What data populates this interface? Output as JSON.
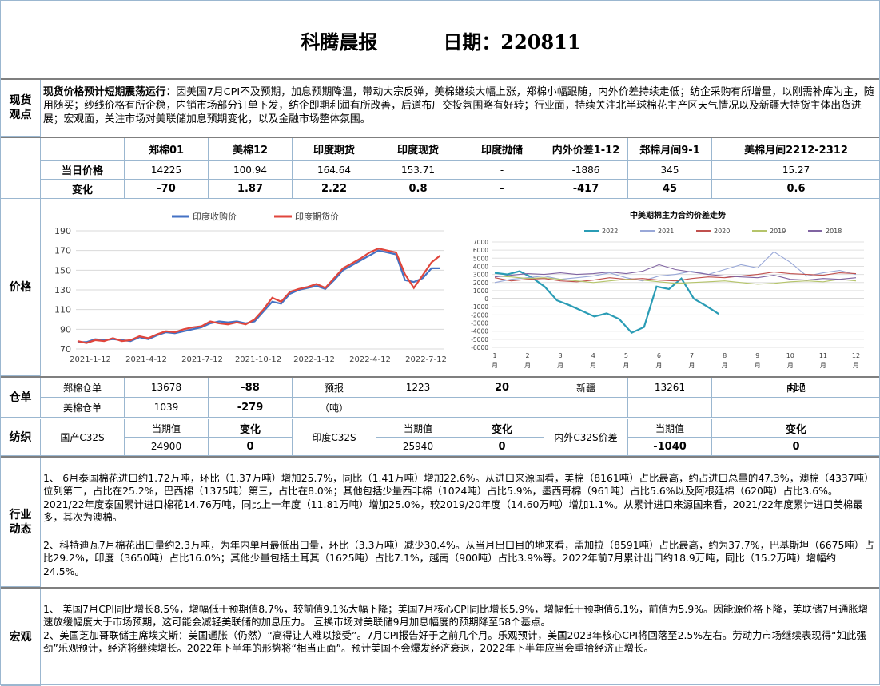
{
  "title": {
    "name": "科腾晨报",
    "date": "日期：220811"
  },
  "sections": {
    "view": "现货\n观点",
    "price": "价格",
    "warehouse": "仓单",
    "textile": "纺织",
    "industry": "行业\n动态",
    "macro": "宏观"
  },
  "view": {
    "headline": "现货价格预计短期震荡运行：",
    "body": "因美国7月CPI不及预期，加息预期降温，带动大宗反弹，美棉继续大幅上涨，郑棉小幅跟随，内外价差持续走低；纺企采购有所增量，以刚需补库为主，随用随买；纱线价格有所企稳，内销市场部分订单下发，纺企即期利润有所改善，后道布厂交投氛围略有好转；行业面，持续关注北半球棉花主产区天气情况以及新疆大持货主体出货进展；宏观面，关注市场对美联储加息预期变化，以及金融市场整体氛围。"
  },
  "price_table": {
    "headers": [
      "郑棉01",
      "美棉12",
      "印度期货",
      "印度现货",
      "印度抛储",
      "内外价差1-12",
      "郑棉月间9-1",
      "美棉月间2212-2312"
    ],
    "row_labels": [
      "当日价格",
      "变化"
    ],
    "today": [
      "14225",
      "100.94",
      "164.64",
      "153.71",
      "-",
      "-1886",
      "345",
      "15.27"
    ],
    "change": [
      "-70",
      "1.87",
      "2.22",
      "0.8",
      "-",
      "-417",
      "45",
      "0.6"
    ]
  },
  "chart_left": {
    "type": "line",
    "title": "",
    "legend": [
      "印度收购价",
      "印度期货价"
    ],
    "colors": [
      "#4472c4",
      "#e0463c"
    ],
    "ylim": [
      70,
      190
    ],
    "yticks": [
      70,
      90,
      110,
      130,
      150,
      170,
      190
    ],
    "xticks": [
      "2021-1-12",
      "2021-4-12",
      "2021-7-12",
      "2021-10-12",
      "2022-1-12",
      "2022-4-12",
      "2022-7-12"
    ],
    "series": [
      {
        "name": "印度收购价",
        "values": [
          77,
          77,
          80,
          79,
          80,
          79,
          78,
          82,
          80,
          84,
          87,
          86,
          88,
          90,
          92,
          96,
          98,
          97,
          98,
          96,
          98,
          108,
          118,
          116,
          126,
          130,
          132,
          134,
          131,
          140,
          150,
          155,
          160,
          165,
          170,
          168,
          166,
          140,
          138,
          142,
          152,
          152
        ]
      },
      {
        "name": "印度期货价",
        "values": [
          78,
          76,
          79,
          78,
          81,
          78,
          79,
          83,
          81,
          85,
          88,
          87,
          90,
          92,
          93,
          98,
          96,
          95,
          97,
          95,
          100,
          110,
          122,
          118,
          128,
          131,
          133,
          136,
          132,
          142,
          152,
          157,
          162,
          168,
          172,
          170,
          168,
          146,
          132,
          145,
          158,
          165
        ]
      }
    ]
  },
  "chart_right": {
    "type": "line",
    "title": "中美期棉主力合约价差走势",
    "legend": [
      "2022",
      "2021",
      "2020",
      "2019",
      "2018"
    ],
    "colors": [
      "#2a9cb5",
      "#99a8d8",
      "#c0504d",
      "#b5c46a",
      "#8064a2"
    ],
    "ylim": [
      -6000,
      7000
    ],
    "yticks": [
      7000,
      6000,
      5000,
      4000,
      3000,
      2000,
      1000,
      0,
      -1000,
      -2000,
      -3000,
      -4000,
      -5000,
      -6000
    ],
    "xticks": [
      "1\n月",
      "2\n月",
      "3\n月",
      "4\n月",
      "5\n月",
      "6\n月",
      "7\n月",
      "8\n月",
      "9\n月",
      "10\n月",
      "11\n月",
      "12\n月"
    ],
    "series": [
      {
        "name": "2022",
        "values": [
          3200,
          3000,
          3400,
          2600,
          1500,
          -200,
          -800,
          -1500,
          -2200,
          -1800,
          -2500,
          -4200,
          -3500,
          1500,
          1200,
          2500,
          0,
          -900,
          -1886
        ]
      },
      {
        "name": "2021",
        "values": [
          2000,
          2400,
          2600,
          2800,
          2400,
          2600,
          2800,
          3200,
          2600,
          2200,
          2800,
          3000,
          3400,
          3000,
          3600,
          4200,
          3800,
          5800,
          4500,
          2800,
          3200,
          3500,
          3000
        ]
      },
      {
        "name": "2020",
        "values": [
          2600,
          2200,
          2400,
          2500,
          2200,
          2100,
          2300,
          2600,
          2400,
          2500,
          2300,
          2200,
          2500,
          2700,
          2600,
          2800,
          3000,
          3300,
          3100,
          3000,
          2900,
          3200,
          3100
        ]
      },
      {
        "name": "2019",
        "values": [
          2800,
          2700,
          2500,
          2600,
          2400,
          2200,
          2000,
          2200,
          2400,
          2300,
          2100,
          1900,
          2000,
          2100,
          2200,
          2000,
          1800,
          1900,
          2100,
          2200,
          2100,
          2400,
          2200
        ]
      },
      {
        "name": "2018",
        "values": [
          2700,
          2900,
          3100,
          3000,
          3200,
          3000,
          3100,
          3300,
          3100,
          3400,
          4200,
          3600,
          3300,
          3000,
          2800,
          2700,
          2600,
          2900,
          2400,
          2300,
          2500,
          2400,
          2600
        ]
      }
    ]
  },
  "warehouse": {
    "zz_label": "郑棉仓单",
    "zz_value": "13678",
    "zz_change": "-88",
    "forecast_label": "预报",
    "forecast_value": "1223",
    "forecast_change": "20",
    "xj_label": "新疆",
    "xj_value": "13261",
    "nd_label": "内地",
    "nd_value": "417",
    "us_label": "美棉仓单",
    "us_value": "1039",
    "us_change": "-279",
    "unit": "（吨）"
  },
  "textile": {
    "cur_label": "当期值",
    "chg_label": "变化",
    "dom_label": "国产C32S",
    "dom_value": "24900",
    "dom_change": "0",
    "ind_label": "印度C32S",
    "ind_value": "25940",
    "ind_change": "0",
    "spread_label": "内外C32S价差",
    "spread_value": "-1040",
    "spread_change": "0"
  },
  "industry": {
    "p1": "1、  6月泰国棉花进口约1.72万吨，环比（1.37万吨）增加25.7%，同比（1.41万吨）增加22.6%。从进口来源国看，美棉（8161吨）占比最高，约占进口总量的47.3%，澳棉（4337吨）位列第二，占比在25.2%，巴西棉（1375吨）第三，占比在8.0%；其他包括少量西非棉（1024吨）占比5.9%，墨西哥棉（961吨）占比5.6%以及阿根廷棉（620吨）占比3.6%。2021/22年度泰国累计进口棉花14.76万吨，同比上一年度（11.81万吨）增加25.0%，较2019/20年度（14.60万吨）增加1.1%。从累计进口来源国来看，2021/22年度累计进口美棉最多，其次为澳棉。",
    "p2": "2、科特迪瓦7月棉花出口量约2.3万吨，为年内单月最低出口量，环比（3.3万吨）减少30.4%。从当月出口目的地来看，孟加拉（8591吨）占比最高，约为37.7%，巴基斯坦（6675吨）占比29.2%，印度（3650吨）占比16.0%；其他少量包括土耳其（1625吨）占比7.1%，越南（900吨）占比3.9%等。2022年前7月累计出口约18.9万吨，同比（15.2万吨）增幅约24.5%。"
  },
  "macro": {
    "p1": "1、  美国7月CPI同比增长8.5%，增幅低于预期值8.7%，较前值9.1%大幅下降；美国7月核心CPI同比增长5.9%，增幅低于预期值6.1%，前值为5.9%。因能源价格下降，美联储7月通胀增速放缓幅度大于市场预期，这可能会减轻美联储的加息压力。 互换市场对美联储9月加息幅度的预期降至58个基点。",
    "p2": "2、美国芝加哥联储主席埃文斯：美国通胀（仍然）“高得让人难以接受”。7月CPI报告好于之前几个月。乐观预计，美国2023年核心CPI将回落至2.5%左右。劳动力市场继续表现得“如此强劲”乐观预计，经济将继续增长。2022年下半年的形势将“相当正面”。预计美国不会爆发经济衰退，2022年下半年应当会重拾经济正增长。"
  }
}
